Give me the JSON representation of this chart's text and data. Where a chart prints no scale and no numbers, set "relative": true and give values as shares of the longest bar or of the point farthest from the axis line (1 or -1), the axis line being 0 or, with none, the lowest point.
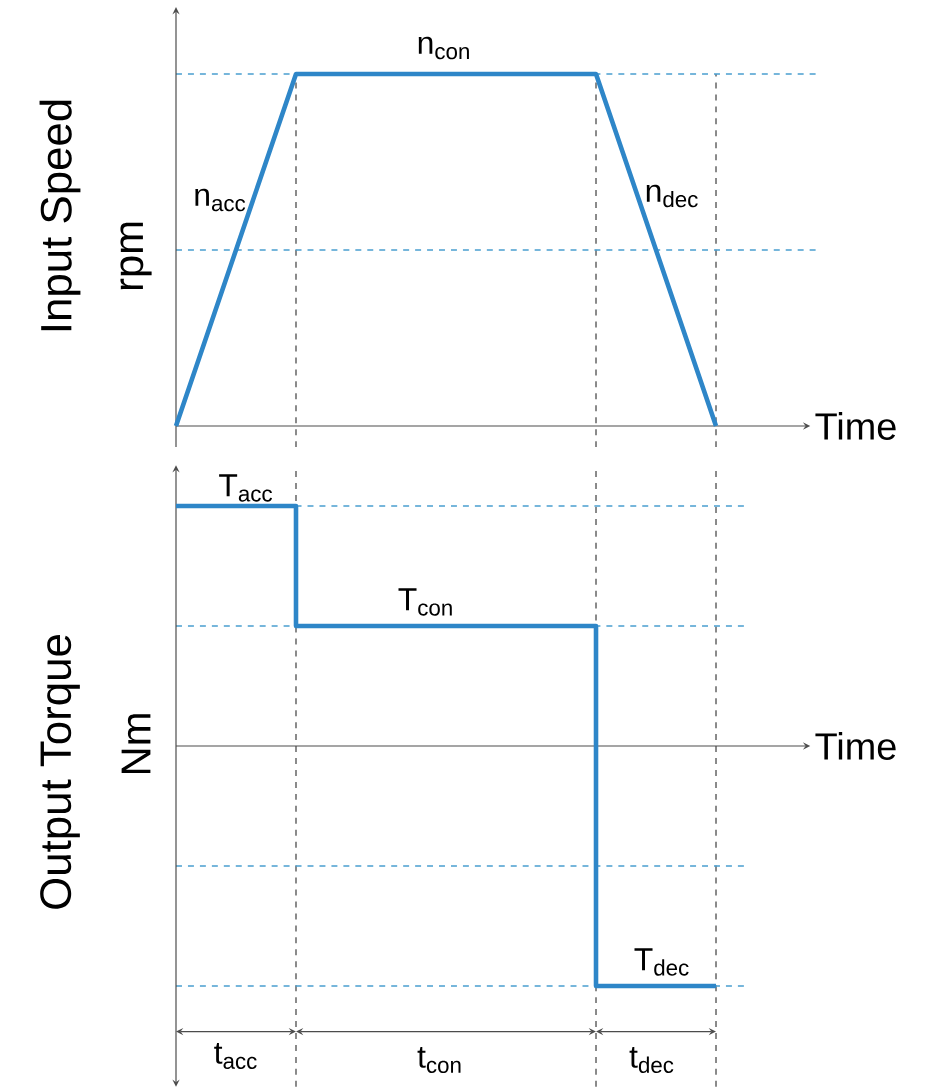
{
  "chart_data": [
    {
      "type": "line",
      "xlabel": "Time",
      "ylabel": "Input Speed",
      "categories": [
        null,
        null,
        null,
        null,
        null,
        null,
        null,
        null,
        null,
        null
      ],
      "relative": true,
      "series": [
        {
          "color": "#2e86c8",
          "values": [
            0,
            0.5,
            1,
            1,
            1,
            1,
            1,
            1,
            0.5,
            0
          ]
        }
      ],
      "ref_lines": [
        {
          "axis": "y",
          "value": 1,
          "color": "#4a9fd0",
          "line_style": "dashed"
        },
        {
          "axis": "y",
          "value": 0.5,
          "color": "#4a9fd0",
          "line_style": "dashed"
        }
      ],
      "grid": "x",
      "annotations": [
        "n$_{con}$",
        "n$_{acc}$",
        "n$_{dec}$",
        "rpm"
      ]
    },
    {
      "type": "step",
      "xlabel": "Time",
      "ylabel": "Output Torque",
      "categories": [
        null,
        null,
        null,
        null,
        null,
        null,
        null,
        null,
        null,
        null
      ],
      "relative": true,
      "series": [
        {
          "color": "#2e86c8",
          "values": [
            1,
            1,
            0.5,
            0.5,
            0.5,
            0.5,
            0.5,
            -1,
            -1,
            -1
          ]
        }
      ],
      "ref_lines": [
        {
          "axis": "y",
          "value": 1,
          "color": "#4a9fd0",
          "line_style": "dashed"
        },
        {
          "axis": "y",
          "value": 0.5,
          "color": "#4a9fd0",
          "line_style": "dashed"
        },
        {
          "axis": "y",
          "value": -0.5,
          "color": "#4a9fd0",
          "line_style": "dashed"
        },
        {
          "axis": "y",
          "value": -1,
          "color": "#4a9fd0",
          "line_style": "dashed"
        }
      ],
      "grid": "x",
      "annotations": [
        "T$_{acc}$",
        "T$_{con}$",
        "T$_{dec}$",
        "Nm",
        "t$_{acc}$",
        "t$_{con}$",
        "t$_{dec}$"
      ]
    }
  ]
}
